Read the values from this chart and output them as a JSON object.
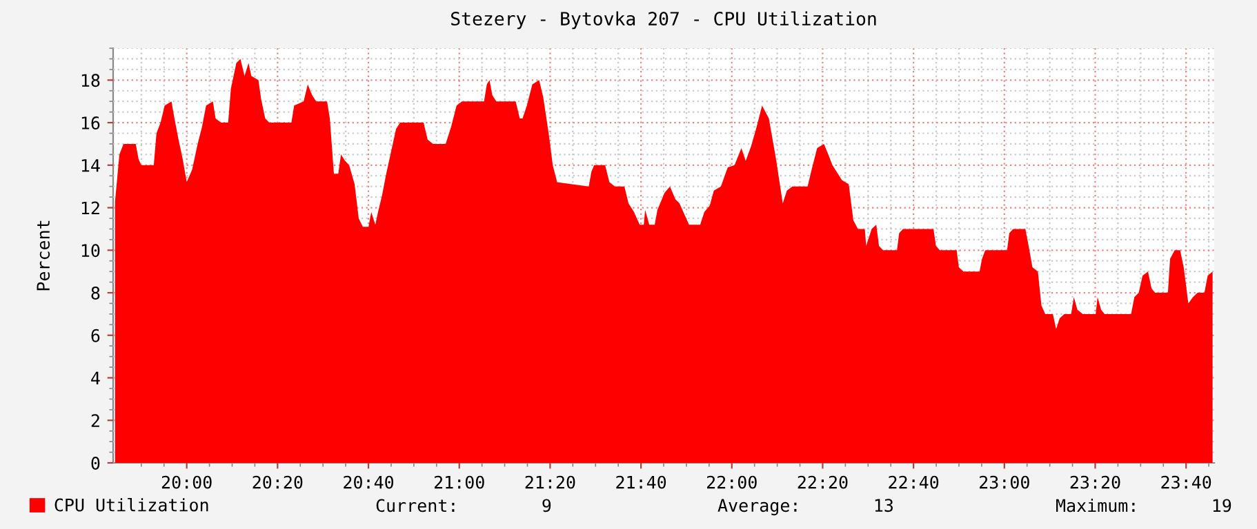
{
  "chart_data": {
    "type": "area",
    "title": "Stezery - Bytovka 207 - CPU Utilization",
    "ylabel": "Percent",
    "xlim": [
      19.73,
      23.77
    ],
    "ylim": [
      0,
      19.1
    ],
    "xticks": [
      {
        "value": 20,
        "label": "20:00"
      },
      {
        "value": 20.3333,
        "label": "20:20"
      },
      {
        "value": 20.6667,
        "label": "20:40"
      },
      {
        "value": 21,
        "label": "21:00"
      },
      {
        "value": 21.3333,
        "label": "21:20"
      },
      {
        "value": 21.6667,
        "label": "21:40"
      },
      {
        "value": 22,
        "label": "22:00"
      },
      {
        "value": 22.3333,
        "label": "22:20"
      },
      {
        "value": 22.6667,
        "label": "22:40"
      },
      {
        "value": 23,
        "label": "23:00"
      },
      {
        "value": 23.3333,
        "label": "23:20"
      },
      {
        "value": 23.6667,
        "label": "23:40"
      }
    ],
    "yticks": [
      0,
      2,
      4,
      6,
      8,
      10,
      12,
      14,
      16,
      18
    ],
    "grid": true,
    "legend": "bottom left",
    "annotations": [
      "Current:        9",
      "Average:       13",
      "Maximum:       19"
    ],
    "series": [
      {
        "name": "CPU Utilization",
        "color": "#ff0000",
        "x": [
          19.737,
          19.753,
          19.768,
          19.813,
          19.823,
          19.833,
          19.879,
          19.889,
          19.904,
          19.919,
          19.944,
          19.955,
          19.97,
          19.985,
          20.0,
          20.02,
          20.04,
          20.056,
          20.071,
          20.096,
          20.106,
          20.126,
          20.152,
          20.162,
          20.182,
          20.197,
          20.212,
          20.227,
          20.237,
          20.263,
          20.273,
          20.288,
          20.303,
          20.384,
          20.394,
          20.429,
          20.444,
          20.46,
          20.475,
          20.515,
          20.525,
          20.54,
          20.556,
          20.566,
          20.581,
          20.596,
          20.616,
          20.631,
          20.646,
          20.667,
          20.677,
          20.692,
          20.702,
          20.717,
          20.732,
          20.768,
          20.783,
          20.869,
          20.884,
          20.904,
          20.95,
          20.97,
          20.99,
          21.01,
          21.091,
          21.101,
          21.111,
          21.121,
          21.136,
          21.207,
          21.222,
          21.232,
          21.248,
          21.268,
          21.293,
          21.308,
          21.328,
          21.343,
          21.359,
          21.475,
          21.485,
          21.495,
          21.535,
          21.551,
          21.571,
          21.606,
          21.621,
          21.641,
          21.662,
          21.677,
          21.682,
          21.697,
          21.717,
          21.727,
          21.753,
          21.773,
          21.793,
          21.808,
          21.843,
          21.884,
          21.899,
          21.919,
          21.934,
          21.96,
          21.985,
          22.01,
          22.035,
          22.051,
          22.071,
          22.091,
          22.111,
          22.136,
          22.162,
          22.187,
          22.202,
          22.222,
          22.278,
          22.293,
          22.313,
          22.338,
          22.354,
          22.369,
          22.404,
          22.429,
          22.446,
          22.463,
          22.488,
          22.493,
          22.513,
          22.53,
          22.54,
          22.555,
          22.606,
          22.614,
          22.628,
          22.74,
          22.749,
          22.763,
          22.825,
          22.833,
          22.85,
          22.909,
          22.918,
          22.93,
          23.01,
          23.018,
          23.032,
          23.077,
          23.089,
          23.103,
          23.123,
          23.136,
          23.15,
          23.178,
          23.19,
          23.203,
          23.22,
          23.245,
          23.255,
          23.268,
          23.288,
          23.335,
          23.342,
          23.355,
          23.368,
          23.465,
          23.477,
          23.493,
          23.507,
          23.527,
          23.54,
          23.553,
          23.6,
          23.608,
          23.625,
          23.645,
          23.658,
          23.675,
          23.692,
          23.709,
          23.734,
          23.746,
          23.764
        ],
        "values": [
          12.3,
          14.5,
          15.0,
          15.0,
          14.3,
          14.0,
          14.0,
          15.5,
          16.0,
          16.8,
          17.0,
          16.2,
          15.2,
          14.3,
          13.2,
          13.8,
          15.0,
          15.8,
          16.8,
          17.0,
          16.2,
          16.0,
          16.0,
          17.6,
          18.8,
          19.0,
          18.2,
          18.8,
          18.2,
          18.0,
          17.1,
          16.2,
          16.0,
          16.0,
          16.8,
          17.0,
          17.8,
          17.3,
          17.0,
          17.0,
          16.2,
          13.6,
          13.6,
          14.5,
          14.2,
          14.0,
          13.1,
          11.5,
          11.1,
          11.1,
          11.8,
          11.2,
          11.8,
          12.6,
          13.6,
          15.7,
          16.0,
          16.0,
          15.2,
          15.0,
          15.0,
          15.8,
          16.8,
          17.0,
          17.0,
          17.8,
          18.0,
          17.3,
          17.0,
          17.0,
          16.2,
          16.2,
          16.8,
          17.8,
          18.0,
          17.2,
          15.5,
          14.0,
          13.2,
          13.0,
          13.7,
          14.0,
          14.0,
          13.2,
          13.0,
          13.0,
          12.2,
          11.8,
          11.2,
          11.2,
          11.9,
          11.2,
          11.2,
          11.9,
          12.7,
          13.0,
          12.4,
          12.2,
          11.2,
          11.2,
          11.8,
          12.1,
          12.8,
          13.0,
          13.9,
          14.0,
          14.8,
          14.2,
          14.9,
          15.8,
          16.8,
          16.2,
          14.3,
          12.2,
          12.8,
          13.0,
          13.0,
          13.8,
          14.8,
          15.0,
          14.5,
          14.0,
          13.3,
          13.1,
          11.4,
          11.0,
          11.0,
          10.2,
          11.0,
          11.2,
          10.2,
          10.0,
          10.0,
          10.8,
          11.0,
          11.0,
          10.2,
          10.0,
          10.0,
          9.2,
          9.0,
          9.0,
          9.6,
          10.0,
          10.0,
          10.8,
          11.0,
          11.0,
          10.2,
          9.2,
          9.0,
          7.4,
          7.0,
          7.0,
          6.3,
          6.8,
          7.0,
          7.0,
          7.8,
          7.2,
          7.0,
          7.0,
          7.8,
          7.2,
          7.0,
          7.0,
          7.8,
          8.0,
          8.8,
          9.0,
          8.2,
          8.0,
          8.0,
          9.6,
          10.0,
          10.0,
          9.2,
          7.5,
          7.8,
          8.0,
          8.0,
          8.8,
          9.0
        ]
      }
    ]
  }
}
